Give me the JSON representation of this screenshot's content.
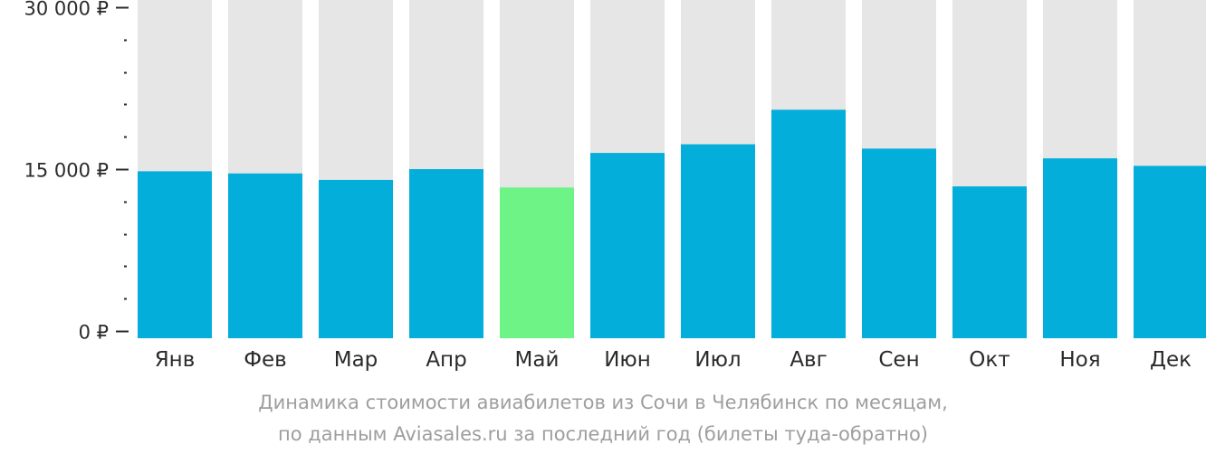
{
  "chart_data": {
    "type": "bar",
    "categories": [
      "Янв",
      "Фев",
      "Мар",
      "Апр",
      "Май",
      "Июн",
      "Июл",
      "Авг",
      "Сен",
      "Окт",
      "Ноя",
      "Дек"
    ],
    "values": [
      14800,
      14600,
      14000,
      15000,
      13300,
      16500,
      17300,
      20500,
      16900,
      13400,
      16000,
      15300
    ],
    "highlight_index": 4,
    "ylim": [
      0,
      30000
    ],
    "y_ticks": [
      {
        "value": 0,
        "label": "0 ₽"
      },
      {
        "value": 15000,
        "label": "15 000 ₽"
      },
      {
        "value": 30000,
        "label": "30 000 ₽"
      }
    ],
    "minor_tick_step": 3000,
    "colors": {
      "bar": "#03aedb",
      "highlight": "#6ef387",
      "track": "#e6e6e6",
      "axis": "#2b2b2b",
      "text": "#2b2b2b",
      "caption": "#9e9e9e"
    },
    "grid": false,
    "legend": "none"
  },
  "caption": {
    "line1": "Динамика стоимости авиабилетов из Сочи в Челябинск по месяцам,",
    "line2": "по данным Aviasales.ru за последний год (билеты туда-обратно)"
  }
}
